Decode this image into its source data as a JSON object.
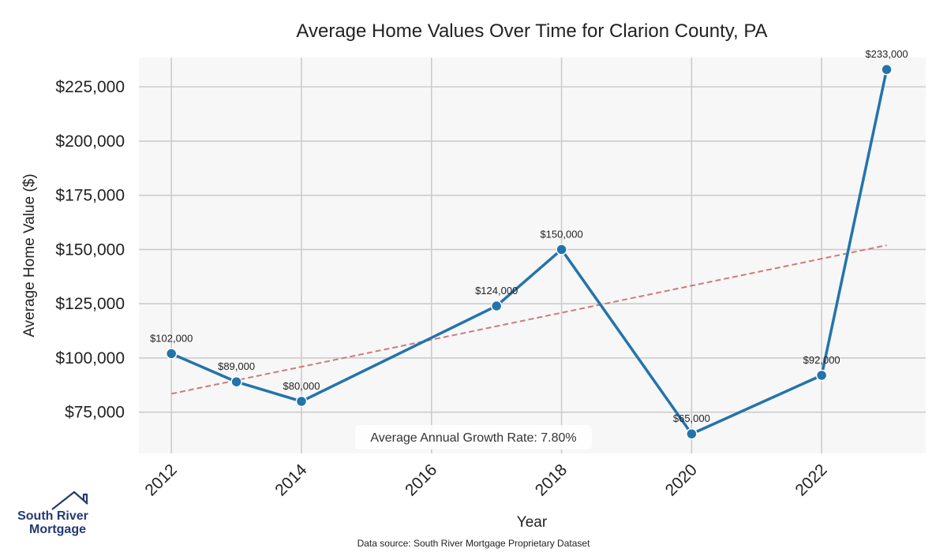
{
  "chart_data": {
    "type": "line",
    "title": "Average Home Values Over Time for Clarion County, PA",
    "xlabel": "Year",
    "ylabel": "Average Home Value ($)",
    "xlim": [
      2011.5,
      2023.6
    ],
    "ylim": [
      56000,
      238500
    ],
    "x_ticks": [
      2012,
      2014,
      2016,
      2018,
      2020,
      2022
    ],
    "y_ticks": [
      75000,
      100000,
      125000,
      150000,
      175000,
      200000,
      225000
    ],
    "y_tick_labels": [
      "$75,000",
      "$100,000",
      "$125,000",
      "$150,000",
      "$175,000",
      "$200,000",
      "$225,000"
    ],
    "series": [
      {
        "name": "Average Home Value",
        "color": "#2374ab",
        "x": [
          2012,
          2013,
          2014,
          2017,
          2018,
          2020,
          2022,
          2023
        ],
        "values": [
          102000,
          89000,
          80000,
          124000,
          150000,
          65000,
          92000,
          233000
        ],
        "labels": [
          "$102,000",
          "$89,000",
          "$80,000",
          "$124,000",
          "$150,000",
          "$65,000",
          "$92,000",
          "$233,000"
        ]
      }
    ],
    "trend_line": {
      "name": "Trend",
      "color": "#cd7b7b",
      "x": [
        2012,
        2023
      ],
      "values": [
        83500,
        152000
      ]
    },
    "annotation": "Average Annual Growth Rate: 7.80%",
    "grid": true,
    "plot_background": "#f7f7f7",
    "grid_color": "#cccccc"
  },
  "footer": {
    "source": "Data source: South River Mortgage Proprietary Dataset"
  },
  "logo": {
    "line1": "South River",
    "line2": "Mortgage",
    "icon": "house-icon",
    "color": "#233a73"
  }
}
